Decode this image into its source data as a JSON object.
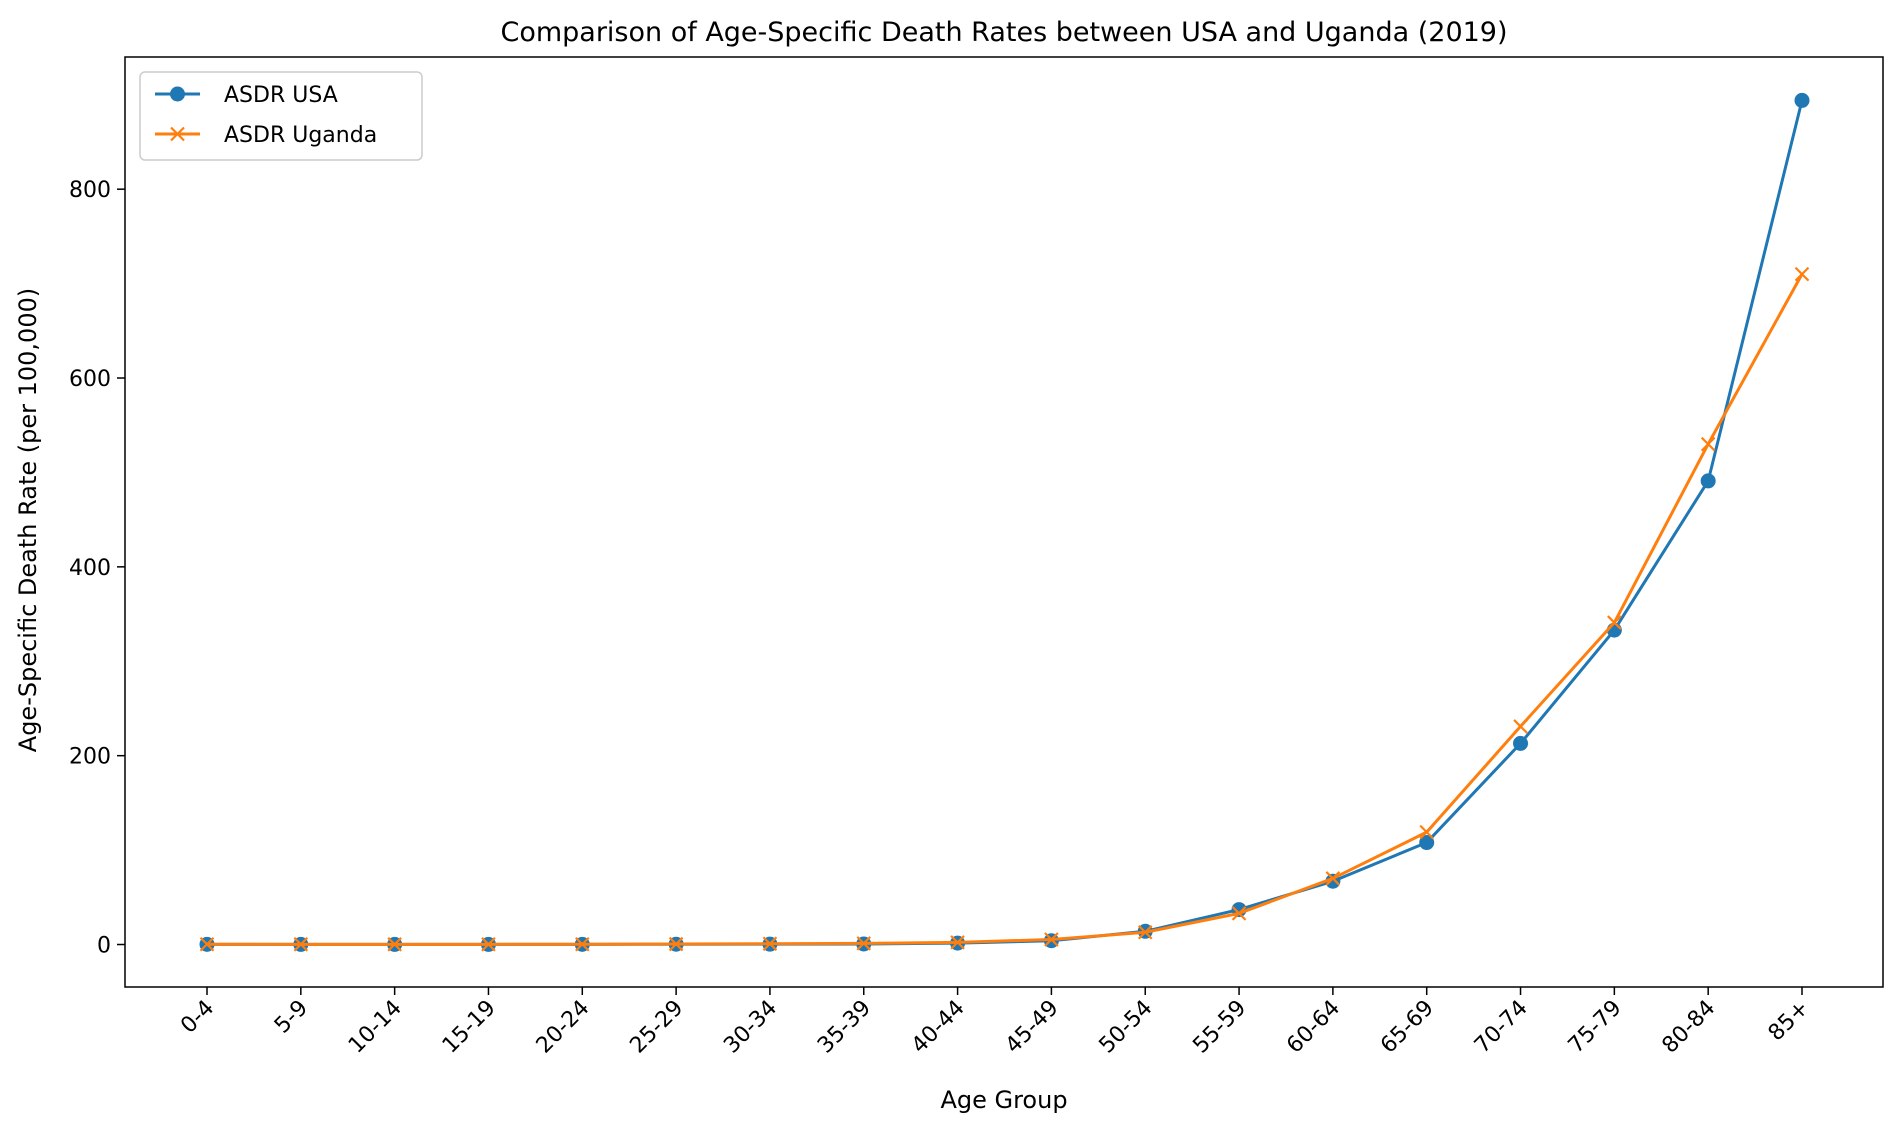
{
  "chart_data": {
    "type": "line",
    "title": "Comparison of Age-Specific Death Rates between USA and Uganda (2019)",
    "xlabel": "Age Group",
    "ylabel": "Age-Specific Death Rate (per 100,000)",
    "categories": [
      "0-4",
      "5-9",
      "10-14",
      "15-19",
      "20-24",
      "25-29",
      "30-34",
      "35-39",
      "40-44",
      "45-49",
      "50-54",
      "55-59",
      "60-64",
      "65-69",
      "70-74",
      "75-79",
      "80-84",
      "85+"
    ],
    "ylim": [
      -45,
      940
    ],
    "yticks": [
      0,
      200,
      400,
      600,
      800
    ],
    "grid": false,
    "legend_position": "upper-left",
    "series": [
      {
        "name": "ASDR USA",
        "color": "#1f77b4",
        "marker": "circle",
        "values": [
          0.2,
          0.1,
          0.1,
          0.1,
          0.2,
          0.3,
          0.4,
          0.6,
          1.5,
          4,
          14,
          37,
          67,
          108,
          213,
          333,
          491,
          894
        ]
      },
      {
        "name": "ASDR Uganda",
        "color": "#ff7f0e",
        "marker": "x",
        "values": [
          0.3,
          0.2,
          0.2,
          0.2,
          0.3,
          0.5,
          0.8,
          1.2,
          2.3,
          5.3,
          13,
          33,
          70,
          119,
          231,
          341,
          530,
          710
        ]
      }
    ]
  }
}
